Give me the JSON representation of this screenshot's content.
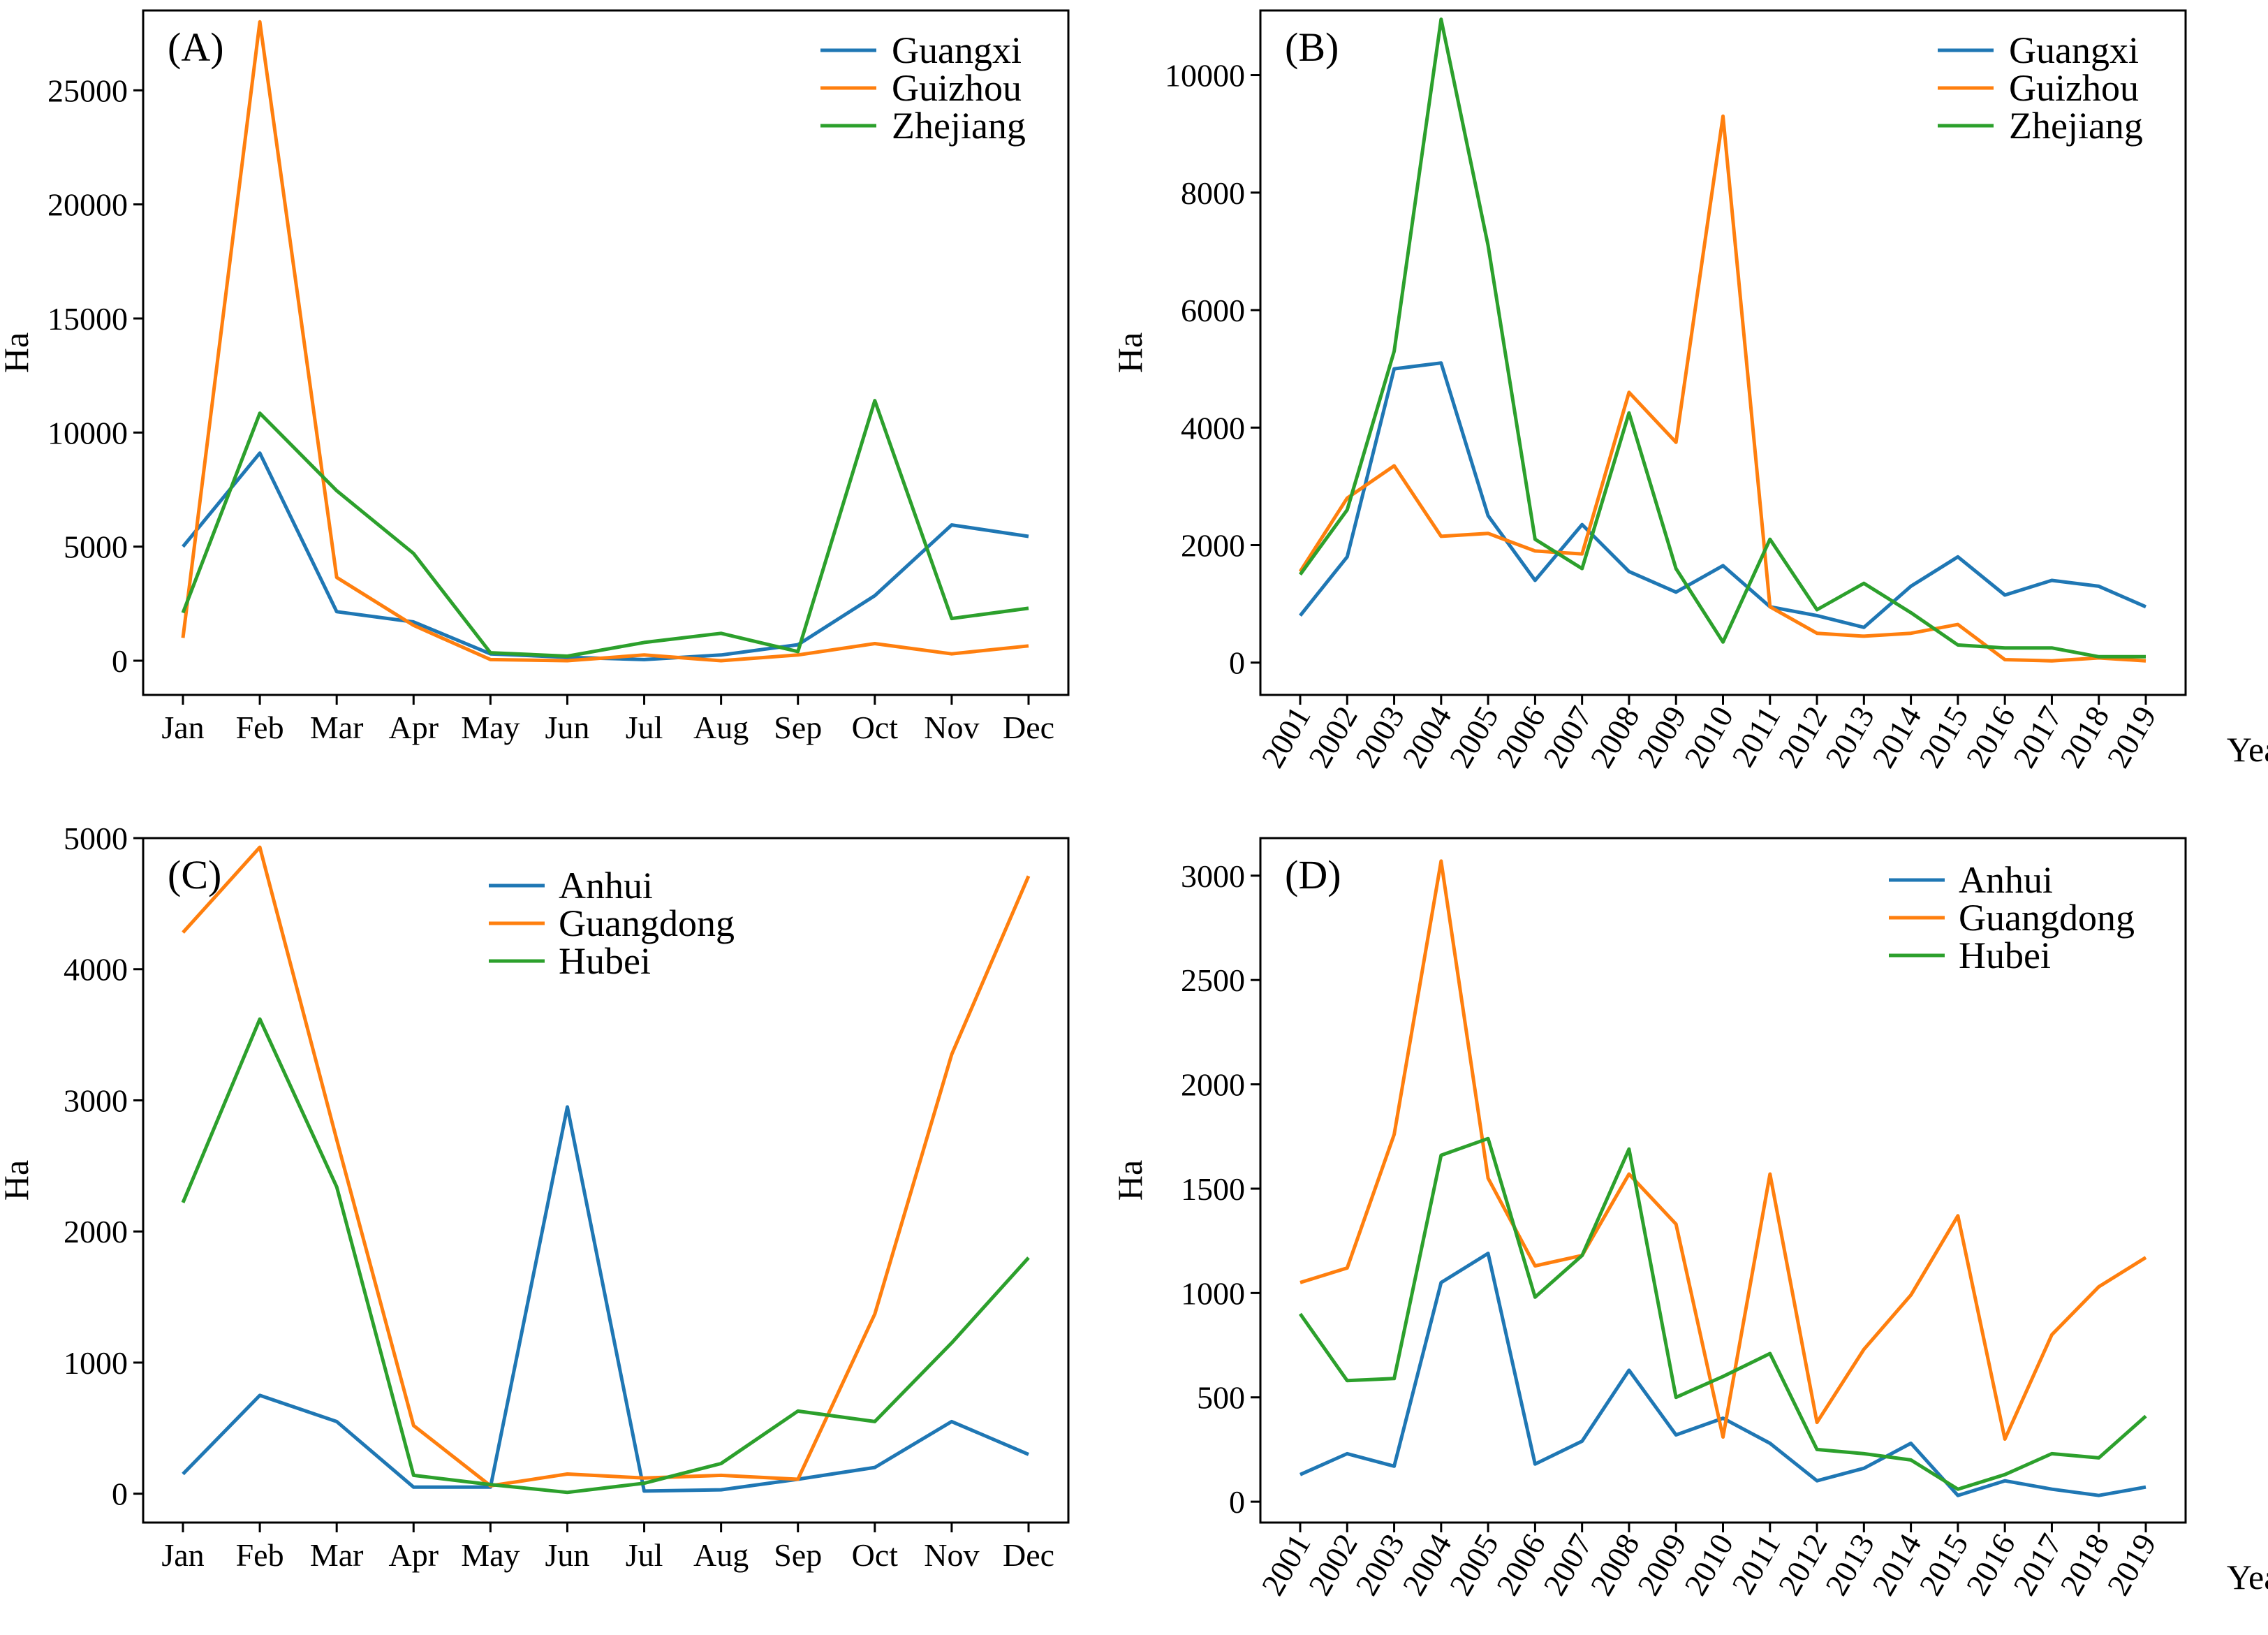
{
  "colors": {
    "blue": "#1f77b4",
    "orange": "#ff7f0e",
    "green": "#2ca02c"
  },
  "chart_data": [
    {
      "id": "A",
      "type": "line",
      "panel_label": "(A)",
      "xlabel": "",
      "ylabel": "Ha",
      "categories": [
        "Jan",
        "Feb",
        "Mar",
        "Apr",
        "May",
        "Jun",
        "Jul",
        "Aug",
        "Sep",
        "Oct",
        "Nov",
        "Dec"
      ],
      "ylim": [
        -1500,
        28500
      ],
      "yticks": [
        0,
        5000,
        10000,
        15000,
        20000,
        25000
      ],
      "legend_position": "top-right",
      "series": [
        {
          "name": "Guangxi",
          "color": "#1f77b4",
          "values": [
            5000,
            9100,
            2150,
            1700,
            300,
            150,
            50,
            250,
            700,
            2850,
            5950,
            5450
          ]
        },
        {
          "name": "Guizhou",
          "color": "#ff7f0e",
          "values": [
            1000,
            28000,
            3650,
            1550,
            50,
            0,
            250,
            0,
            250,
            750,
            300,
            650
          ]
        },
        {
          "name": "Zhejiang",
          "color": "#2ca02c",
          "values": [
            2100,
            10850,
            7450,
            4700,
            350,
            200,
            800,
            1200,
            400,
            11400,
            1850,
            2300
          ]
        }
      ]
    },
    {
      "id": "B",
      "type": "line",
      "panel_label": "(B)",
      "xlabel": "Year",
      "ylabel": "Ha",
      "categories": [
        "2001",
        "2002",
        "2003",
        "2004",
        "2005",
        "2006",
        "2007",
        "2008",
        "2009",
        "2010",
        "2011",
        "2012",
        "2013",
        "2014",
        "2015",
        "2016",
        "2017",
        "2018",
        "2019"
      ],
      "ylim": [
        -550,
        11100
      ],
      "yticks": [
        0,
        2000,
        4000,
        6000,
        8000,
        10000
      ],
      "legend_position": "top-right",
      "series": [
        {
          "name": "Guangxi",
          "color": "#1f77b4",
          "values": [
            800,
            1800,
            5000,
            5100,
            2500,
            1400,
            2350,
            1550,
            1200,
            1650,
            950,
            800,
            600,
            1300,
            1800,
            1150,
            1400,
            1300,
            950
          ]
        },
        {
          "name": "Guizhou",
          "color": "#ff7f0e",
          "values": [
            1550,
            2800,
            3350,
            2150,
            2200,
            1900,
            1850,
            4600,
            3750,
            9300,
            950,
            500,
            450,
            500,
            650,
            50,
            30,
            80,
            30
          ]
        },
        {
          "name": "Zhejiang",
          "color": "#2ca02c",
          "values": [
            1500,
            2600,
            5300,
            10950,
            7100,
            2100,
            1600,
            4250,
            1600,
            350,
            2100,
            900,
            1350,
            850,
            300,
            250,
            250,
            100,
            100
          ]
        }
      ]
    },
    {
      "id": "C",
      "type": "line",
      "panel_label": "(C)",
      "xlabel": "",
      "ylabel": "Ha",
      "categories": [
        "Jan",
        "Feb",
        "Mar",
        "Apr",
        "May",
        "Jun",
        "Jul",
        "Aug",
        "Sep",
        "Oct",
        "Nov",
        "Dec"
      ],
      "ylim": [
        -220,
        5000
      ],
      "yticks": [
        0,
        1000,
        2000,
        3000,
        4000,
        5000
      ],
      "legend_position": "top-center",
      "series": [
        {
          "name": "Anhui",
          "color": "#1f77b4",
          "values": [
            150,
            750,
            550,
            50,
            50,
            2950,
            20,
            30,
            110,
            200,
            550,
            300
          ]
        },
        {
          "name": "Guangdong",
          "color": "#ff7f0e",
          "values": [
            4280,
            4930,
            2700,
            520,
            60,
            150,
            120,
            140,
            110,
            1370,
            3350,
            4710
          ]
        },
        {
          "name": "Hubei",
          "color": "#2ca02c",
          "values": [
            2220,
            3620,
            2340,
            140,
            70,
            10,
            80,
            230,
            630,
            550,
            1150,
            1800
          ]
        }
      ]
    },
    {
      "id": "D",
      "type": "line",
      "panel_label": "(D)",
      "xlabel": "Year",
      "ylabel": "Ha",
      "categories": [
        "2001",
        "2002",
        "2003",
        "2004",
        "2005",
        "2006",
        "2007",
        "2008",
        "2009",
        "2010",
        "2011",
        "2012",
        "2013",
        "2014",
        "2015",
        "2016",
        "2017",
        "2018",
        "2019"
      ],
      "ylim": [
        -100,
        3180
      ],
      "yticks": [
        0,
        500,
        1000,
        1500,
        2000,
        2500,
        3000
      ],
      "legend_position": "top-right",
      "series": [
        {
          "name": "Anhui",
          "color": "#1f77b4",
          "values": [
            130,
            230,
            170,
            1050,
            1190,
            180,
            290,
            630,
            320,
            400,
            280,
            100,
            160,
            280,
            30,
            100,
            60,
            30,
            70
          ]
        },
        {
          "name": "Guangdong",
          "color": "#ff7f0e",
          "values": [
            1050,
            1120,
            1760,
            3070,
            1550,
            1130,
            1180,
            1570,
            1330,
            310,
            1570,
            380,
            730,
            990,
            1370,
            300,
            800,
            1030,
            1170
          ]
        },
        {
          "name": "Hubei",
          "color": "#2ca02c",
          "values": [
            900,
            580,
            590,
            1660,
            1740,
            980,
            1180,
            1690,
            500,
            600,
            710,
            250,
            230,
            200,
            60,
            130,
            230,
            210,
            410
          ]
        }
      ]
    }
  ]
}
